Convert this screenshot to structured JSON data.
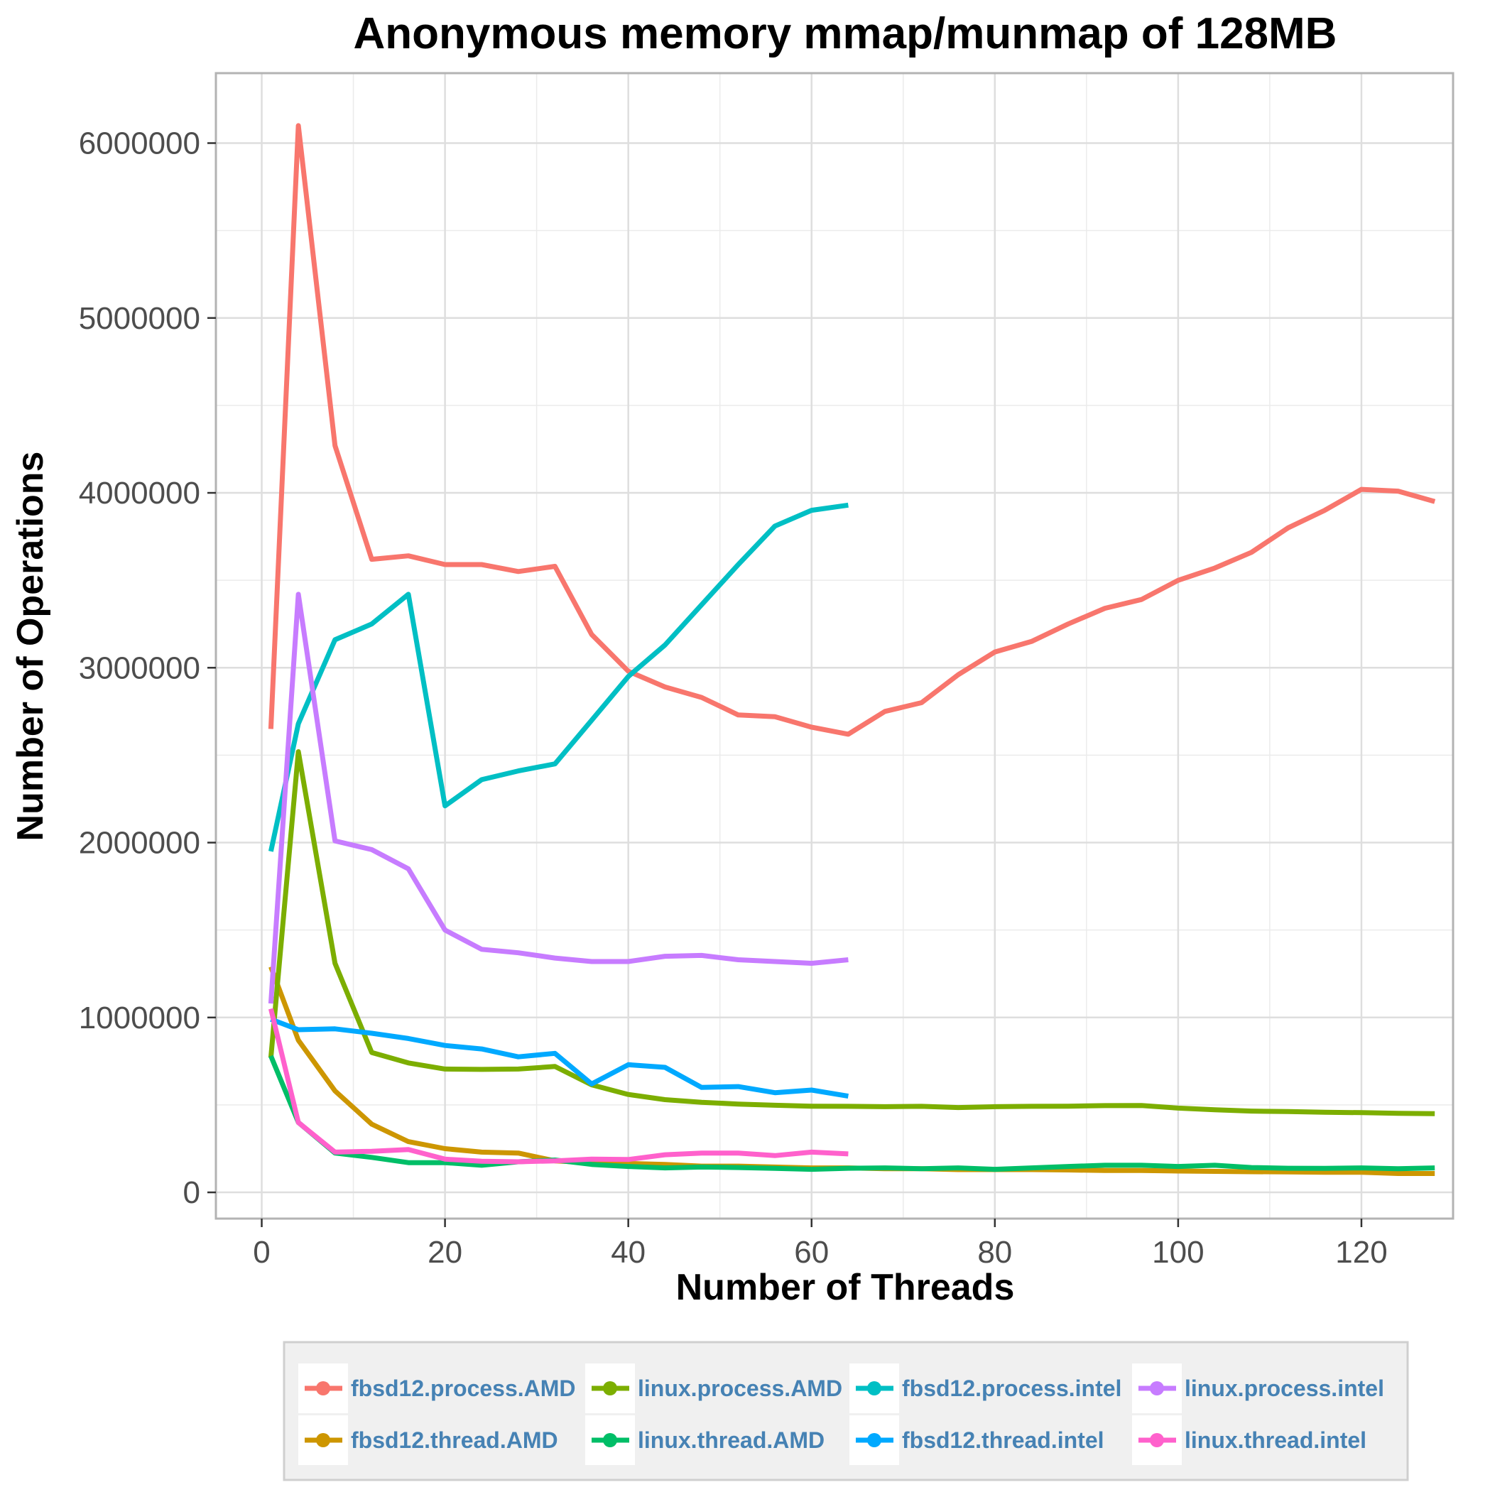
{
  "chart_data": {
    "type": "line",
    "title": "Anonymous memory mmap/munmap of 128MB",
    "xlabel": "Number of Threads",
    "ylabel": "Number of Operations",
    "xlim": [
      -5,
      130
    ],
    "ylim": [
      -150000,
      6400000
    ],
    "xticks": [
      0,
      20,
      40,
      60,
      80,
      100,
      120
    ],
    "yticks": [
      0,
      1000000,
      2000000,
      3000000,
      4000000,
      5000000,
      6000000
    ],
    "grid": true,
    "legend_position": "bottom",
    "series": [
      {
        "name": "fbsd12.process.AMD",
        "color": "#F8766D",
        "x": [
          1,
          4,
          8,
          12,
          16,
          20,
          24,
          28,
          32,
          36,
          40,
          44,
          48,
          52,
          56,
          60,
          64,
          68,
          72,
          76,
          80,
          84,
          88,
          92,
          96,
          100,
          104,
          108,
          112,
          116,
          120,
          124,
          128
        ],
        "y": [
          2650000,
          6100000,
          4270000,
          3620000,
          3640000,
          3590000,
          3590000,
          3550000,
          3580000,
          3190000,
          2980000,
          2890000,
          2830000,
          2730000,
          2720000,
          2660000,
          2620000,
          2750000,
          2800000,
          2960000,
          3090000,
          3150000,
          3250000,
          3340000,
          3390000,
          3500000,
          3570000,
          3660000,
          3800000,
          3900000,
          4020000,
          4010000,
          3950000
        ]
      },
      {
        "name": "fbsd12.thread.AMD",
        "color": "#CD9600",
        "x": [
          1,
          4,
          8,
          12,
          16,
          20,
          24,
          28,
          32,
          36,
          40,
          44,
          48,
          52,
          56,
          60,
          64,
          68,
          72,
          76,
          80,
          84,
          88,
          92,
          96,
          100,
          104,
          108,
          112,
          116,
          120,
          124,
          128
        ],
        "y": [
          1290000,
          870000,
          580000,
          390000,
          290000,
          250000,
          230000,
          225000,
          180000,
          170000,
          165000,
          160000,
          150000,
          150000,
          145000,
          140000,
          140000,
          135000,
          135000,
          130000,
          130000,
          130000,
          128000,
          125000,
          125000,
          122000,
          120000,
          118000,
          117000,
          115000,
          115000,
          108000,
          108000
        ]
      },
      {
        "name": "linux.process.AMD",
        "color": "#7CAE00",
        "x": [
          1,
          4,
          8,
          12,
          16,
          20,
          24,
          28,
          32,
          36,
          40,
          44,
          48,
          52,
          56,
          60,
          64,
          68,
          72,
          76,
          80,
          84,
          88,
          92,
          96,
          100,
          104,
          108,
          112,
          116,
          120,
          124,
          128
        ],
        "y": [
          770000,
          2520000,
          1310000,
          800000,
          740000,
          705000,
          703000,
          705000,
          720000,
          615000,
          560000,
          530000,
          515000,
          505000,
          498000,
          493000,
          492000,
          490000,
          492000,
          485000,
          490000,
          492000,
          493000,
          496000,
          497000,
          482000,
          472000,
          465000,
          462000,
          458000,
          456000,
          452000,
          450000
        ]
      },
      {
        "name": "linux.thread.AMD",
        "color": "#00BE67",
        "x": [
          1,
          4,
          8,
          12,
          16,
          20,
          24,
          28,
          32,
          36,
          40,
          44,
          48,
          52,
          56,
          60,
          64,
          68,
          72,
          76,
          80,
          84,
          88,
          92,
          96,
          100,
          104,
          108,
          112,
          116,
          120,
          124,
          128
        ],
        "y": [
          780000,
          400000,
          225000,
          200000,
          170000,
          170000,
          155000,
          175000,
          185000,
          160000,
          148000,
          140000,
          145000,
          142000,
          137000,
          132000,
          138000,
          140000,
          135000,
          140000,
          132000,
          140000,
          148000,
          155000,
          155000,
          148000,
          155000,
          142000,
          138000,
          137000,
          140000,
          135000,
          140000
        ]
      },
      {
        "name": "fbsd12.process.intel",
        "color": "#00BFC4",
        "x": [
          1,
          4,
          8,
          12,
          16,
          20,
          24,
          28,
          32,
          36,
          40,
          44,
          48,
          52,
          56,
          60,
          64
        ],
        "y": [
          1950000,
          2680000,
          3160000,
          3250000,
          3420000,
          2210000,
          2360000,
          2410000,
          2450000,
          2700000,
          2950000,
          3130000,
          3360000,
          3590000,
          3810000,
          3900000,
          3930000
        ]
      },
      {
        "name": "fbsd12.thread.intel",
        "color": "#00A9FF",
        "x": [
          1,
          4,
          8,
          12,
          16,
          20,
          24,
          28,
          32,
          36,
          40,
          44,
          48,
          52,
          56,
          60,
          64
        ],
        "y": [
          990000,
          930000,
          935000,
          910000,
          880000,
          840000,
          820000,
          775000,
          795000,
          620000,
          730000,
          715000,
          600000,
          605000,
          570000,
          585000,
          550000
        ]
      },
      {
        "name": "linux.process.intel",
        "color": "#C77CFF",
        "x": [
          1,
          4,
          8,
          12,
          16,
          20,
          24,
          28,
          32,
          36,
          40,
          44,
          48,
          52,
          56,
          60,
          64
        ],
        "y": [
          1080000,
          3420000,
          2010000,
          1960000,
          1850000,
          1500000,
          1390000,
          1370000,
          1340000,
          1320000,
          1320000,
          1350000,
          1355000,
          1330000,
          1320000,
          1310000,
          1330000
        ]
      },
      {
        "name": "linux.thread.intel",
        "color": "#FF61CC",
        "x": [
          1,
          4,
          8,
          12,
          16,
          20,
          24,
          28,
          32,
          36,
          40,
          44,
          48,
          52,
          56,
          60,
          64
        ],
        "y": [
          1050000,
          400000,
          230000,
          235000,
          245000,
          190000,
          178000,
          175000,
          180000,
          190000,
          188000,
          215000,
          225000,
          225000,
          210000,
          230000,
          220000
        ]
      }
    ],
    "legend_order": [
      "fbsd12.process.AMD",
      "linux.process.AMD",
      "fbsd12.process.intel",
      "linux.process.intel",
      "fbsd12.thread.AMD",
      "linux.thread.AMD",
      "fbsd12.thread.intel",
      "linux.thread.intel"
    ]
  }
}
